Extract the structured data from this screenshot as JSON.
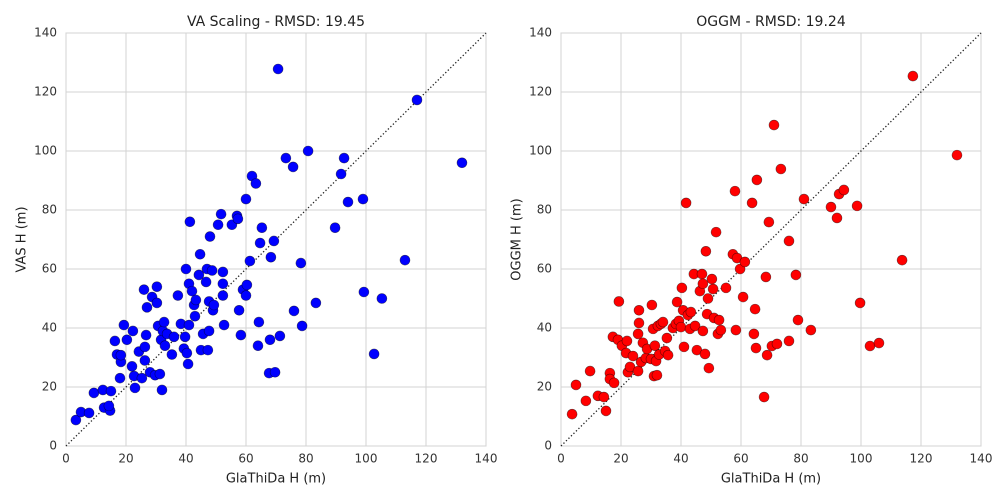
{
  "chart_data": [
    {
      "type": "scatter",
      "title": "VA Scaling - RMSD: 19.45",
      "xlabel": "GlaThiDa H (m)",
      "ylabel": "VAS H (m)",
      "color": "#0000ff",
      "xlim": [
        0,
        140
      ],
      "ylim": [
        0,
        140
      ],
      "xticks": [
        0,
        20,
        40,
        60,
        80,
        100,
        120,
        140
      ],
      "yticks": [
        0,
        20,
        40,
        60,
        80,
        100,
        120,
        140
      ],
      "grid": true,
      "x": [
        3.3,
        5,
        7.7,
        9.3,
        12.3,
        12.7,
        14.7,
        15,
        14.3,
        17,
        16.3,
        18,
        18.3,
        18.3,
        19.3,
        20.3,
        22.3,
        22,
        22.7,
        23,
        24.3,
        25.3,
        26,
        26.3,
        26.3,
        26.7,
        27,
        28,
        28.7,
        29.7,
        30.3,
        30.3,
        30.7,
        31.3,
        31.7,
        32,
        32.3,
        32.7,
        33,
        33.7,
        35.3,
        36,
        37.3,
        38.3,
        39.3,
        39.7,
        40,
        40.3,
        40.7,
        41,
        41,
        41.3,
        42,
        42.7,
        43,
        43.3,
        44.3,
        44.7,
        45,
        45.7,
        46.7,
        47,
        47.3,
        47.7,
        47.7,
        48,
        48.7,
        49,
        49.3,
        50.7,
        51.7,
        52.3,
        52.3,
        52.3,
        52.7,
        55.3,
        57,
        57.3,
        57.7,
        58.3,
        59,
        60,
        60,
        60.3,
        61.3,
        62,
        63.3,
        64,
        64.3,
        64.7,
        65.3,
        67.7,
        68,
        68.3,
        69.3,
        69.7,
        70.7,
        71.3,
        73.3,
        75.7,
        76,
        78.3,
        78.7,
        80.7,
        83.3,
        89.7,
        91.7,
        92.7,
        94,
        99,
        99.3,
        102.7,
        105.3,
        113,
        117,
        132
      ],
      "y": [
        8.8,
        11.5,
        11.2,
        18,
        19,
        13,
        12,
        18.6,
        13.6,
        31,
        35.6,
        23,
        28.5,
        30.8,
        41,
        36,
        39,
        27,
        23.7,
        19.7,
        32,
        23,
        53,
        29,
        33.6,
        37.6,
        47,
        25,
        50.5,
        24,
        54,
        48.5,
        40.7,
        24.4,
        36,
        19,
        39,
        42,
        34,
        38,
        31,
        37,
        51,
        41.4,
        33,
        37,
        60,
        31.5,
        27.8,
        41,
        55,
        76,
        52.5,
        47.8,
        44,
        49.5,
        58,
        65,
        32.5,
        38,
        55.6,
        60,
        32.5,
        49,
        39,
        71,
        59.5,
        46,
        47.8,
        75,
        78.6,
        55,
        51,
        59,
        41,
        75,
        78,
        77,
        46,
        37.6,
        53,
        83.7,
        51,
        54.6,
        62.7,
        91.5,
        89,
        34,
        42,
        68.8,
        74,
        24.7,
        36,
        64,
        69.5,
        25,
        127.8,
        37.3,
        97.6,
        94.6,
        45.8,
        62,
        40.7,
        100,
        48.5,
        74,
        92.2,
        97.6,
        82.7,
        83.7,
        52.2,
        31.2,
        50,
        63,
        117.3,
        96
      ]
    },
    {
      "type": "scatter",
      "title": "OGGM - RMSD: 19.24",
      "xlabel": "GlaThiDa H (m)",
      "ylabel": "OGGM H (m)",
      "color": "#ff0000",
      "xlim": [
        0,
        140
      ],
      "ylim": [
        0,
        140
      ],
      "xticks": [
        0,
        20,
        40,
        60,
        80,
        100,
        120,
        140
      ],
      "yticks": [
        0,
        20,
        40,
        60,
        80,
        100,
        120,
        140
      ],
      "grid": true,
      "x": [
        3.7,
        5,
        8.3,
        9.7,
        12.3,
        14.3,
        15,
        16.3,
        16.3,
        17.3,
        17.7,
        19,
        19.3,
        20.3,
        21.7,
        22,
        22.3,
        23,
        24,
        25.7,
        25.7,
        26,
        26,
        26.7,
        27.3,
        28.3,
        28.7,
        30,
        30.3,
        30.7,
        31,
        31.3,
        31.7,
        32,
        32.3,
        32.7,
        33.3,
        34,
        34.7,
        35.3,
        35.7,
        37.3,
        38.3,
        38.7,
        39.3,
        40,
        40.3,
        40.7,
        41,
        41.7,
        42.3,
        43,
        43.3,
        44.3,
        44.7,
        45.3,
        46.3,
        47,
        47.3,
        47.3,
        48,
        48.3,
        48.7,
        49,
        49.3,
        50.3,
        50.7,
        51,
        51.7,
        52.3,
        52.7,
        53.3,
        55,
        57.3,
        58,
        58.3,
        58.7,
        59.7,
        60.7,
        61.3,
        63.7,
        64.3,
        64.7,
        65,
        65.3,
        67.7,
        68.3,
        68.7,
        69.3,
        70.3,
        71,
        72,
        73.3,
        76,
        76,
        78.3,
        79,
        81,
        83.3,
        90,
        92,
        92.7,
        94.3,
        98.7,
        99.7,
        103,
        106,
        113.7,
        117.3,
        132
      ],
      "y": [
        10.8,
        20.7,
        15.3,
        25.4,
        17,
        16.6,
        11.9,
        24.7,
        22.7,
        37,
        21.4,
        36,
        49,
        34,
        31.5,
        35.6,
        25,
        26.8,
        30.5,
        25.4,
        38,
        46,
        41.7,
        28.5,
        35,
        29.8,
        32.9,
        29.5,
        47.8,
        39.7,
        23.7,
        34,
        28.8,
        24,
        40.7,
        31,
        41.4,
        42,
        32.2,
        36.6,
        30.8,
        40,
        41.4,
        48.8,
        42.4,
        40.3,
        53.6,
        46,
        33.6,
        82.4,
        44.4,
        39.7,
        45.4,
        58.3,
        40.7,
        32.5,
        52.5,
        58.3,
        55,
        39,
        31.2,
        66,
        44.7,
        50,
        26.4,
        56.6,
        53.2,
        43.4,
        72.5,
        38,
        42.7,
        39.3,
        53.6,
        65,
        86.4,
        39.3,
        63.7,
        60,
        50.5,
        62.4,
        82.4,
        38,
        46.4,
        33.2,
        90.2,
        16.6,
        57.3,
        30.8,
        75.9,
        33.9,
        108.8,
        34.6,
        93.9,
        35.6,
        69.5,
        58,
        42.7,
        83.7,
        39.3,
        81,
        77.3,
        85.4,
        86.8,
        81.4,
        48.5,
        33.9,
        34.9,
        63,
        125.4,
        98.6
      ]
    }
  ]
}
